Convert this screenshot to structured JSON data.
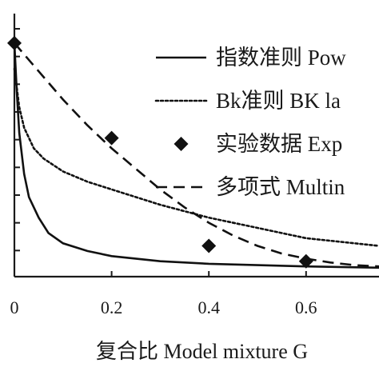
{
  "chart_data": {
    "type": "line",
    "x_ticks": [
      "0",
      "0.2",
      "0.4",
      "0.6"
    ],
    "xlim": [
      0,
      0.75
    ],
    "ylim": [
      0,
      1.0
    ],
    "xlabel": "复合比 Model mixture G",
    "series": [
      {
        "name": "指数准则 Pow",
        "style": "solid",
        "x": [
          0,
          0.005,
          0.01,
          0.02,
          0.03,
          0.05,
          0.07,
          0.1,
          0.15,
          0.2,
          0.3,
          0.4,
          0.5,
          0.6,
          0.75
        ],
        "y": [
          0.91,
          0.72,
          0.56,
          0.4,
          0.31,
          0.23,
          0.17,
          0.13,
          0.1,
          0.08,
          0.06,
          0.05,
          0.045,
          0.04,
          0.035
        ]
      },
      {
        "name": "Bk准则 BK la",
        "style": "dotted",
        "x": [
          0,
          0.01,
          0.02,
          0.04,
          0.06,
          0.1,
          0.15,
          0.2,
          0.3,
          0.4,
          0.5,
          0.6,
          0.75
        ],
        "y": [
          0.81,
          0.66,
          0.58,
          0.5,
          0.46,
          0.41,
          0.37,
          0.34,
          0.28,
          0.23,
          0.19,
          0.15,
          0.12
        ]
      },
      {
        "name": "实验数据 Exp",
        "style": "marker",
        "x": [
          0,
          0.2,
          0.4,
          0.6
        ],
        "y": [
          0.91,
          0.54,
          0.12,
          0.06
        ]
      },
      {
        "name": "多项式 Multin",
        "style": "dashed",
        "x": [
          0,
          0.05,
          0.1,
          0.15,
          0.2,
          0.25,
          0.3,
          0.35,
          0.4,
          0.45,
          0.5,
          0.55,
          0.6,
          0.65,
          0.7,
          0.75
        ],
        "y": [
          0.91,
          0.8,
          0.69,
          0.59,
          0.5,
          0.42,
          0.34,
          0.27,
          0.21,
          0.16,
          0.12,
          0.09,
          0.07,
          0.055,
          0.045,
          0.04
        ]
      }
    ],
    "legend": "top-right",
    "grid": false
  }
}
